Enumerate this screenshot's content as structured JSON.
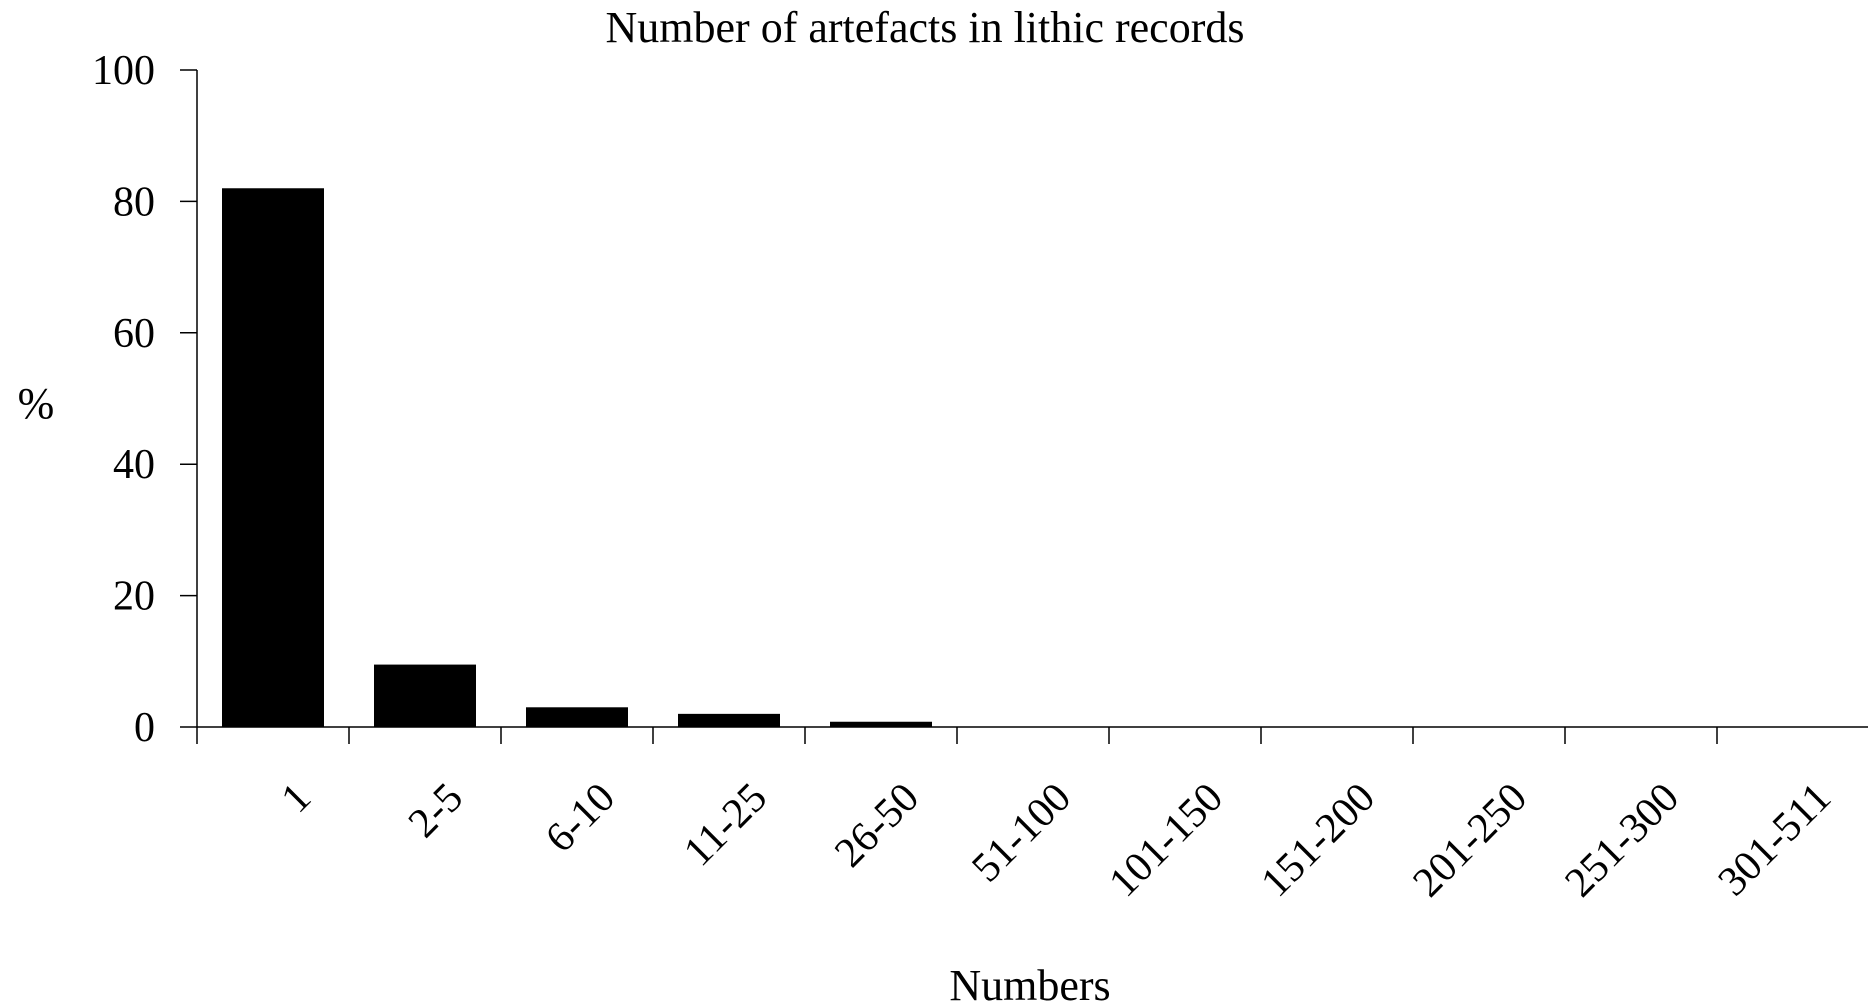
{
  "chart_data": {
    "type": "bar",
    "title": "Number of artefacts in lithic records",
    "xlabel": "Numbers",
    "ylabel": "%",
    "categories": [
      "1",
      "2-5",
      "6-10",
      "11-25",
      "26-50",
      "51-100",
      "101-150",
      "151-200",
      "201-250",
      "251-300",
      "301-511"
    ],
    "values": [
      82,
      9.5,
      3,
      2,
      0.8,
      0,
      0,
      0,
      0,
      0,
      0
    ],
    "ylim": [
      0,
      100
    ],
    "yticks": [
      "0",
      "20",
      "40",
      "60",
      "80",
      "100"
    ],
    "grid": false,
    "legend": "none",
    "bar_color": "#000000"
  }
}
